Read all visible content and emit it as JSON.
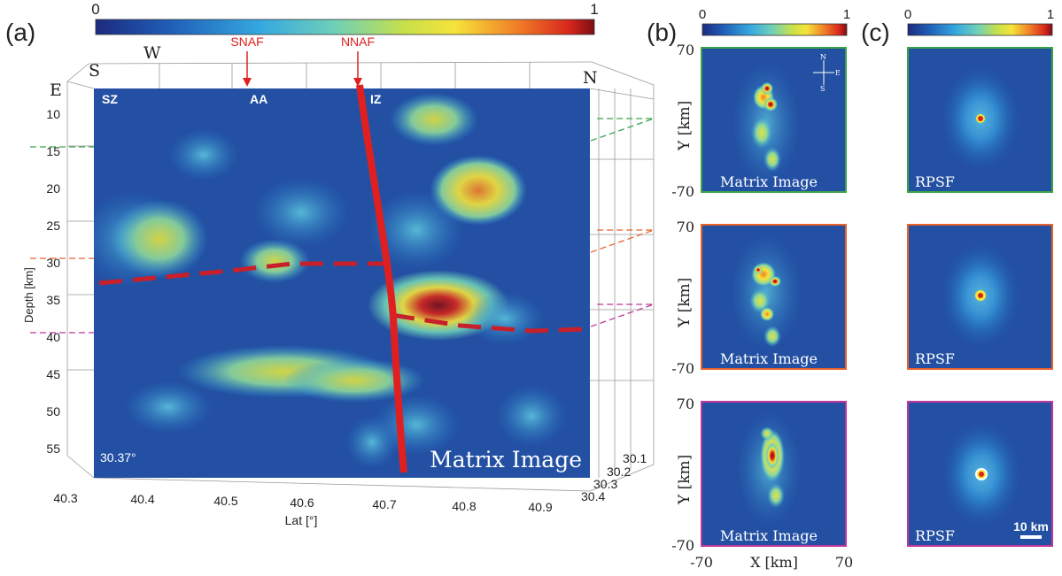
{
  "panel_labels": [
    "(a)",
    "(b)",
    "(c)"
  ],
  "colorbars": {
    "min": "0",
    "max": "1"
  },
  "panel_a": {
    "compass": {
      "S": "S",
      "W": "W",
      "E": "E",
      "N": "N"
    },
    "faults": [
      {
        "label": "SNAF"
      },
      {
        "label": "NNAF"
      }
    ],
    "zones": [
      "SZ",
      "AA",
      "IZ"
    ],
    "ylabel": "Depth [km]",
    "yticks": [
      "10",
      "15",
      "20",
      "25",
      "30",
      "35",
      "40",
      "45",
      "50",
      "55"
    ],
    "xlabel": "Lat [°]",
    "xticks": [
      "40.3",
      "40.4",
      "40.5",
      "40.6",
      "40.7",
      "40.8",
      "40.9"
    ],
    "zticks": [
      "30.1",
      "30.2",
      "30.3",
      "30.4"
    ],
    "angle": "30.37°",
    "caption": "Matrix Image"
  },
  "panel_b": {
    "ylabel": "Y [km]",
    "xlabel": "X [km]",
    "ytick_top": "70",
    "ytick_bottom": "-70",
    "xtick_left": "-70",
    "xtick_right": "70",
    "caption": "Matrix Image",
    "compass": {
      "N": "N",
      "E": "E",
      "S": "S"
    },
    "frame_colors": [
      "#3aa34a",
      "#e8622c",
      "#c0369a"
    ]
  },
  "panel_c": {
    "caption": "RPSF",
    "scalebar": "10 km",
    "frame_colors": [
      "#3aa34a",
      "#e8622c",
      "#c0369a"
    ]
  },
  "colors": {
    "slice_green": "#3aa34a",
    "slice_orange": "#e8622c",
    "slice_magenta": "#c0369a",
    "fault": "#e02020",
    "moho": "#c8202a"
  }
}
